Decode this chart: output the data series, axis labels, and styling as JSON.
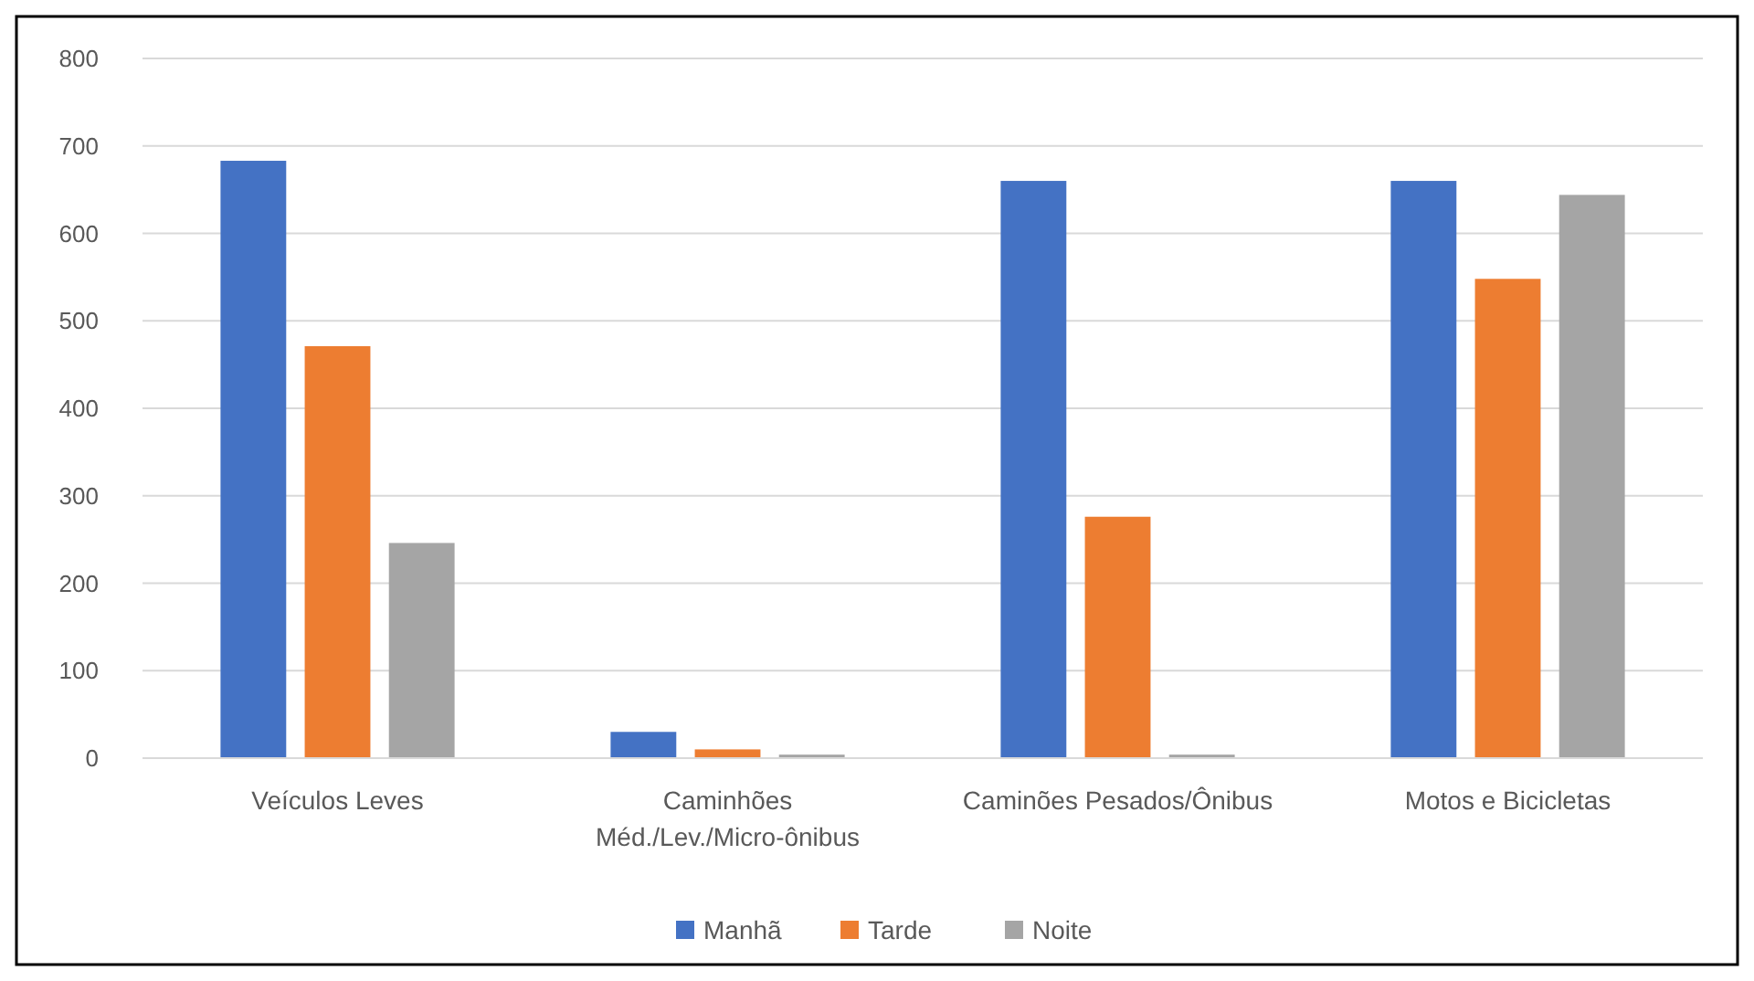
{
  "chart_data": {
    "type": "bar",
    "categories": [
      "Veículos Leves",
      "Caminhões Méd./Lev./Micro-ônibus",
      "Caminões Pesados/Ônibus",
      "Motos e Bicicletas"
    ],
    "series": [
      {
        "name": "Manhã",
        "color": "#4472c4",
        "values": [
          683,
          30,
          660,
          660
        ]
      },
      {
        "name": "Tarde",
        "color": "#ed7d31",
        "values": [
          471,
          10,
          276,
          548
        ]
      },
      {
        "name": "Noite",
        "color": "#a5a5a5",
        "values": [
          246,
          4,
          4,
          644
        ]
      }
    ],
    "ylim": [
      0,
      800
    ],
    "yticks": [
      0,
      100,
      200,
      300,
      400,
      500,
      600,
      700,
      800
    ],
    "grid": "y",
    "legend": "bottom"
  }
}
